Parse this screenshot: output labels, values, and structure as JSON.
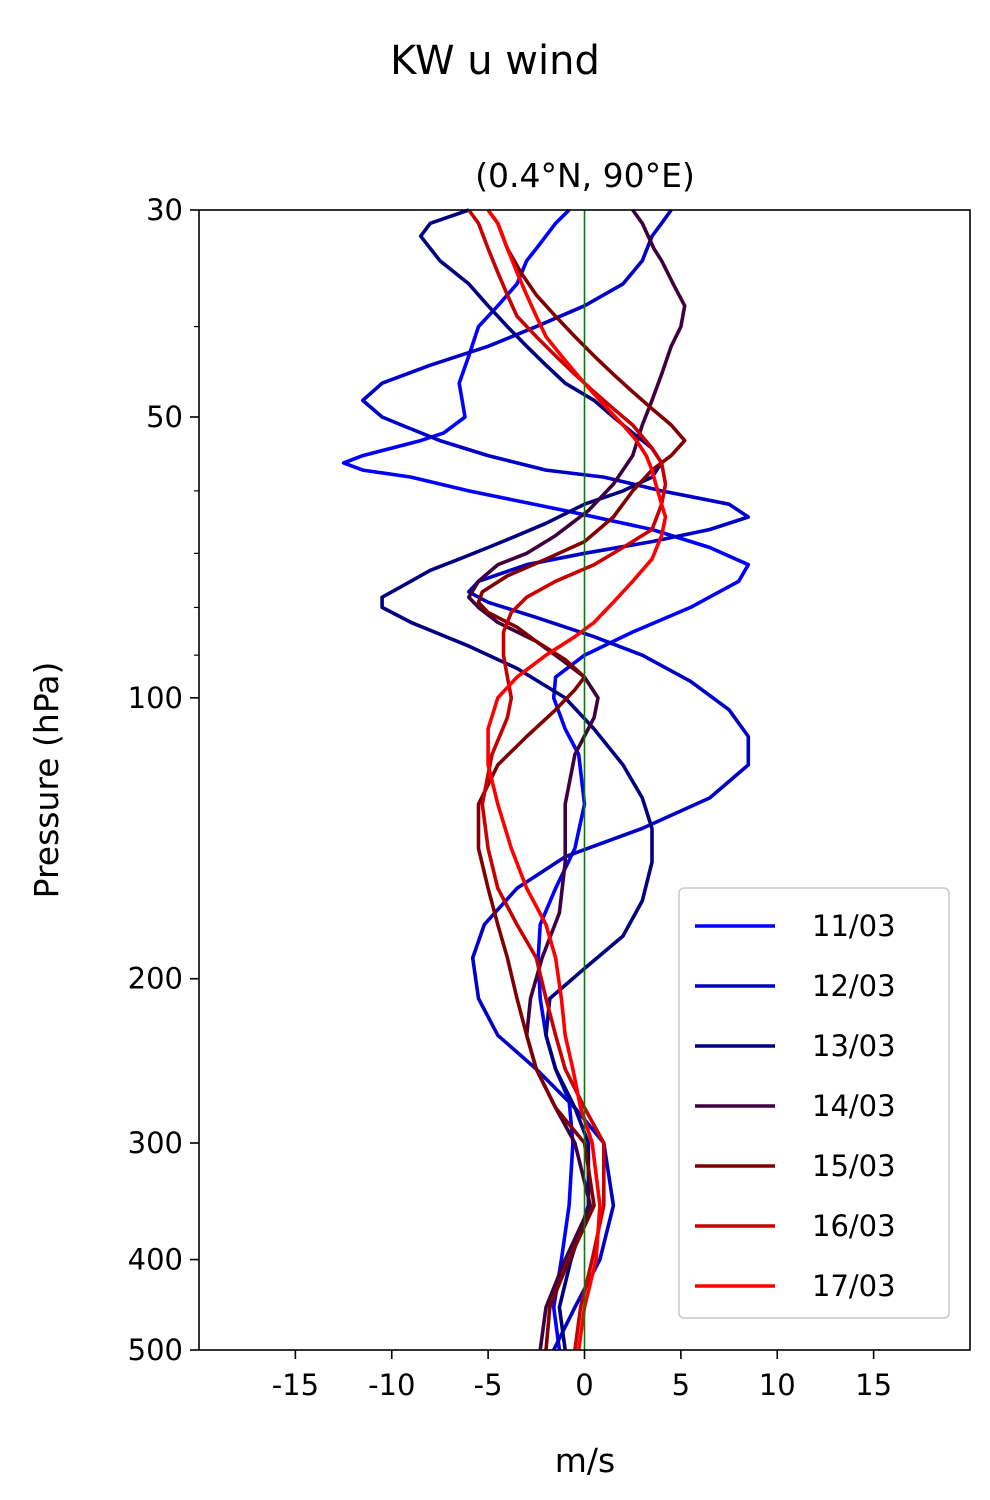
{
  "chart_data": {
    "type": "line",
    "title": "KW u wind",
    "subtitle": "(0.4°N, 90°E)",
    "xlabel": "m/s",
    "ylabel": "Pressure (hPa)",
    "xlim": [
      -20,
      20
    ],
    "ylim": [
      500,
      30
    ],
    "y_scale": "log",
    "x_ticks": [
      -15,
      -10,
      -5,
      0,
      5,
      10,
      15
    ],
    "x_tick_labels": [
      "-15",
      "-10",
      "-5",
      "0",
      "5",
      "10",
      "15"
    ],
    "y_ticks": [
      30,
      50,
      100,
      200,
      300,
      400,
      500
    ],
    "y_tick_labels": [
      "30",
      "50",
      "100",
      "200",
      "300",
      "400",
      "500"
    ],
    "y_minor_ticks": [
      40,
      60,
      70,
      80,
      90
    ],
    "reference_line": {
      "x": 0,
      "color": "#008000"
    },
    "legend_position": "lower-right",
    "grid": false,
    "series": [
      {
        "name": "11/03",
        "color": "#0000ff",
        "points": [
          [
            -1.3,
            500
          ],
          [
            -1.6,
            450
          ],
          [
            -1.2,
            400
          ],
          [
            -0.8,
            350
          ],
          [
            -0.6,
            300
          ],
          [
            -0.8,
            270
          ],
          [
            -1.5,
            250
          ],
          [
            -2.0,
            230
          ],
          [
            -2.3,
            210
          ],
          [
            -2.4,
            190
          ],
          [
            -2.3,
            175
          ],
          [
            -1.5,
            160
          ],
          [
            -0.5,
            145
          ],
          [
            0.0,
            130
          ],
          [
            -0.3,
            115
          ],
          [
            -1.0,
            108
          ],
          [
            -1.6,
            100
          ],
          [
            -1.5,
            95
          ],
          [
            0,
            90
          ],
          [
            2.5,
            85
          ],
          [
            5.5,
            80
          ],
          [
            8,
            75
          ],
          [
            8.5,
            72
          ],
          [
            6.5,
            69
          ],
          [
            3.5,
            66
          ],
          [
            -1,
            63
          ],
          [
            -6,
            60
          ],
          [
            -9,
            58
          ],
          [
            -11.5,
            57
          ],
          [
            -12.5,
            56
          ],
          [
            -11.5,
            55
          ],
          [
            -8.5,
            53
          ],
          [
            -7.3,
            52
          ],
          [
            -6.2,
            50
          ],
          [
            -6.5,
            46
          ],
          [
            -6,
            43
          ],
          [
            -5.5,
            40
          ],
          [
            -4.5,
            38
          ],
          [
            -3.5,
            36
          ],
          [
            -3,
            34
          ],
          [
            -2.5,
            33
          ],
          [
            -1.5,
            31
          ],
          [
            -0.8,
            30
          ]
        ]
      },
      {
        "name": "12/03",
        "color": "#0000c8",
        "points": [
          [
            -1.6,
            500
          ],
          [
            -0.5,
            450
          ],
          [
            0.8,
            400
          ],
          [
            1.5,
            350
          ],
          [
            1.0,
            300
          ],
          [
            -0.5,
            275
          ],
          [
            -2.5,
            250
          ],
          [
            -4.5,
            230
          ],
          [
            -5.5,
            210
          ],
          [
            -5.8,
            190
          ],
          [
            -5.2,
            175
          ],
          [
            -3.5,
            160
          ],
          [
            -1,
            148
          ],
          [
            3,
            138
          ],
          [
            6.5,
            128
          ],
          [
            8.5,
            118
          ],
          [
            8.5,
            110
          ],
          [
            7.5,
            103
          ],
          [
            5.5,
            96
          ],
          [
            3,
            90
          ],
          [
            0.5,
            86
          ],
          [
            -2.5,
            82
          ],
          [
            -5,
            79
          ],
          [
            -6,
            77
          ],
          [
            -5.5,
            75
          ],
          [
            -3,
            72
          ],
          [
            0,
            70
          ],
          [
            3.5,
            68
          ],
          [
            6.5,
            66
          ],
          [
            8.5,
            64
          ],
          [
            7.5,
            62
          ],
          [
            4,
            60
          ],
          [
            1,
            58
          ],
          [
            -2,
            57
          ],
          [
            -5,
            55
          ],
          [
            -7.5,
            53
          ],
          [
            -9.5,
            51
          ],
          [
            -10.5,
            50
          ],
          [
            -11.5,
            48
          ],
          [
            -10.5,
            46
          ],
          [
            -8,
            44
          ],
          [
            -5,
            42
          ],
          [
            -2.5,
            40
          ],
          [
            0,
            38
          ],
          [
            2,
            36
          ],
          [
            3,
            34
          ],
          [
            3.5,
            32
          ],
          [
            4,
            31
          ],
          [
            4.5,
            30
          ]
        ]
      },
      {
        "name": "13/03",
        "color": "#000080",
        "points": [
          [
            -1.0,
            500
          ],
          [
            -1.3,
            450
          ],
          [
            -0.7,
            400
          ],
          [
            0.2,
            350
          ],
          [
            0.2,
            300
          ],
          [
            -0.5,
            275
          ],
          [
            -1.5,
            250
          ],
          [
            -2.0,
            230
          ],
          [
            -1.8,
            210
          ],
          [
            0.0,
            195
          ],
          [
            2.0,
            180
          ],
          [
            3.0,
            165
          ],
          [
            3.5,
            150
          ],
          [
            3.5,
            138
          ],
          [
            3.0,
            128
          ],
          [
            2.0,
            118
          ],
          [
            0.5,
            108
          ],
          [
            -1.0,
            100
          ],
          [
            -3.5,
            93
          ],
          [
            -6,
            88
          ],
          [
            -9,
            83
          ],
          [
            -10.5,
            80
          ],
          [
            -10.5,
            78
          ],
          [
            -9.5,
            76
          ],
          [
            -8,
            73
          ],
          [
            -6.5,
            71
          ],
          [
            -5,
            69
          ],
          [
            -3.5,
            67
          ],
          [
            -2,
            65
          ],
          [
            0,
            62
          ],
          [
            2,
            60
          ],
          [
            3.5,
            58
          ],
          [
            4,
            56
          ],
          [
            3.5,
            54
          ],
          [
            2.5,
            52
          ],
          [
            1.5,
            50
          ],
          [
            0.5,
            48
          ],
          [
            -1.0,
            46
          ],
          [
            -2.0,
            44
          ],
          [
            -3.0,
            42
          ],
          [
            -4.0,
            40
          ],
          [
            -5.0,
            38
          ],
          [
            -6.0,
            36
          ],
          [
            -7.5,
            34
          ],
          [
            -8.5,
            32
          ],
          [
            -8,
            31
          ],
          [
            -6,
            30
          ]
        ]
      },
      {
        "name": "14/03",
        "color": "#400040",
        "points": [
          [
            -2.3,
            500
          ],
          [
            -2.0,
            450
          ],
          [
            -1.0,
            400
          ],
          [
            0.3,
            350
          ],
          [
            -0.5,
            300
          ],
          [
            -1.5,
            275
          ],
          [
            -2.5,
            250
          ],
          [
            -3.0,
            230
          ],
          [
            -2.8,
            210
          ],
          [
            -2.2,
            190
          ],
          [
            -1.3,
            170
          ],
          [
            -1.0,
            150
          ],
          [
            -1.0,
            130
          ],
          [
            -0.5,
            115
          ],
          [
            0.5,
            105
          ],
          [
            0.7,
            100
          ],
          [
            0.0,
            95
          ],
          [
            -1.2,
            91
          ],
          [
            -2.5,
            87
          ],
          [
            -4.5,
            83
          ],
          [
            -5.5,
            80
          ],
          [
            -6.0,
            78
          ],
          [
            -5.5,
            75
          ],
          [
            -4.5,
            72
          ],
          [
            -3.0,
            70
          ],
          [
            -1.5,
            67
          ],
          [
            0.2,
            63
          ],
          [
            1.5,
            59
          ],
          [
            2.5,
            55
          ],
          [
            3.0,
            51
          ],
          [
            3.5,
            48
          ],
          [
            4.0,
            45
          ],
          [
            4.5,
            42
          ],
          [
            5.0,
            40
          ],
          [
            5.2,
            38
          ],
          [
            4.6,
            36
          ],
          [
            4.0,
            34
          ],
          [
            3.6,
            33
          ],
          [
            3.0,
            31
          ],
          [
            2.5,
            30
          ]
        ]
      },
      {
        "name": "15/03",
        "color": "#800000",
        "points": [
          [
            -2.0,
            500
          ],
          [
            -1.8,
            450
          ],
          [
            -0.8,
            400
          ],
          [
            0.5,
            350
          ],
          [
            0,
            300
          ],
          [
            -1.5,
            275
          ],
          [
            -2.5,
            250
          ],
          [
            -3.0,
            230
          ],
          [
            -3.5,
            210
          ],
          [
            -4.0,
            190
          ],
          [
            -4.5,
            175
          ],
          [
            -5.0,
            160
          ],
          [
            -5.5,
            145
          ],
          [
            -5.5,
            130
          ],
          [
            -4.5,
            118
          ],
          [
            -3.0,
            110
          ],
          [
            -1.5,
            103
          ],
          [
            -0.5,
            98
          ],
          [
            0,
            95
          ],
          [
            -1.0,
            91
          ],
          [
            -2.5,
            87
          ],
          [
            -3.5,
            84
          ],
          [
            -5,
            81
          ],
          [
            -5.5,
            79
          ],
          [
            -5.3,
            77
          ],
          [
            -4,
            74
          ],
          [
            -2,
            71
          ],
          [
            0,
            68
          ],
          [
            1.5,
            64
          ],
          [
            2.5,
            60
          ],
          [
            3.5,
            57
          ],
          [
            4.5,
            55
          ],
          [
            5.2,
            53
          ],
          [
            4.5,
            51
          ],
          [
            3.5,
            49
          ],
          [
            2.5,
            47
          ],
          [
            1.5,
            45
          ],
          [
            0.5,
            43
          ],
          [
            -0.5,
            41
          ],
          [
            -1.5,
            39
          ],
          [
            -2.5,
            37
          ],
          [
            -3.3,
            35
          ],
          [
            -4.0,
            33
          ],
          [
            -4.5,
            31
          ],
          [
            -5.0,
            30
          ]
        ]
      },
      {
        "name": "16/03",
        "color": "#c80000",
        "points": [
          [
            -0.5,
            500
          ],
          [
            -0.2,
            450
          ],
          [
            0.4,
            400
          ],
          [
            1.0,
            350
          ],
          [
            1.0,
            300
          ],
          [
            0.0,
            275
          ],
          [
            -1.0,
            250
          ],
          [
            -1.5,
            230
          ],
          [
            -2.0,
            210
          ],
          [
            -2.5,
            190
          ],
          [
            -3.5,
            175
          ],
          [
            -4.5,
            160
          ],
          [
            -5,
            145
          ],
          [
            -5.3,
            130
          ],
          [
            -4.8,
            115
          ],
          [
            -4.0,
            105
          ],
          [
            -3.8,
            100
          ],
          [
            -4.0,
            95
          ],
          [
            -4.2,
            90
          ],
          [
            -4.2,
            85
          ],
          [
            -3.8,
            81
          ],
          [
            -3.0,
            78
          ],
          [
            -1.5,
            75
          ],
          [
            0.5,
            72
          ],
          [
            2.0,
            69
          ],
          [
            3.5,
            66
          ],
          [
            4.0,
            62
          ],
          [
            4.2,
            59
          ],
          [
            4.0,
            56
          ],
          [
            3.5,
            54
          ],
          [
            2.5,
            51
          ],
          [
            1.5,
            49
          ],
          [
            0.5,
            47
          ],
          [
            -0.5,
            45
          ],
          [
            -1.5,
            43
          ],
          [
            -2.5,
            41
          ],
          [
            -3.5,
            39
          ],
          [
            -4.0,
            37
          ],
          [
            -4.5,
            35
          ],
          [
            -5.0,
            33
          ],
          [
            -5.5,
            31
          ],
          [
            -6,
            30
          ]
        ]
      },
      {
        "name": "17/03",
        "color": "#ff0000",
        "points": [
          [
            -0.3,
            500
          ],
          [
            0,
            450
          ],
          [
            0.6,
            400
          ],
          [
            0.8,
            350
          ],
          [
            0.4,
            300
          ],
          [
            -0.2,
            275
          ],
          [
            -0.6,
            250
          ],
          [
            -1.0,
            230
          ],
          [
            -1.2,
            210
          ],
          [
            -1.5,
            190
          ],
          [
            -2.0,
            175
          ],
          [
            -3.0,
            160
          ],
          [
            -3.8,
            145
          ],
          [
            -4.5,
            130
          ],
          [
            -5.0,
            118
          ],
          [
            -5.0,
            108
          ],
          [
            -4.5,
            100
          ],
          [
            -3.5,
            95
          ],
          [
            -2.0,
            90
          ],
          [
            -0.5,
            86
          ],
          [
            0.5,
            83
          ],
          [
            1.5,
            79
          ],
          [
            2.5,
            75
          ],
          [
            3.5,
            71
          ],
          [
            4,
            67
          ],
          [
            4.2,
            64
          ],
          [
            4,
            62
          ],
          [
            3.7,
            59
          ],
          [
            3.5,
            57
          ],
          [
            3.2,
            55
          ],
          [
            2.7,
            53
          ],
          [
            2.0,
            51
          ],
          [
            1.2,
            49
          ],
          [
            0.4,
            47
          ],
          [
            -0.4,
            45
          ],
          [
            -1.2,
            43
          ],
          [
            -2.0,
            41
          ],
          [
            -2.5,
            39
          ],
          [
            -3.0,
            37
          ],
          [
            -3.5,
            35
          ],
          [
            -4.0,
            33
          ],
          [
            -4.5,
            31
          ],
          [
            -5.0,
            30
          ]
        ]
      }
    ]
  }
}
